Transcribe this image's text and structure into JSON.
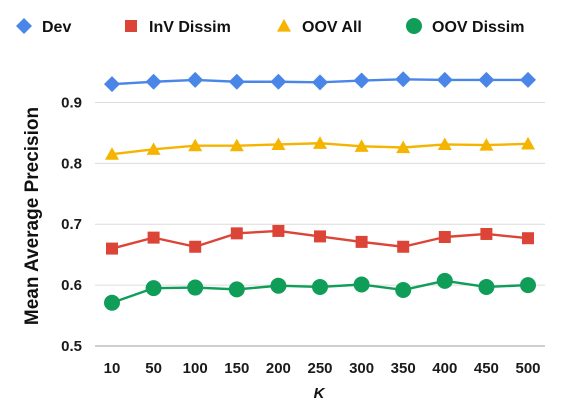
{
  "chart_data": {
    "type": "line",
    "x": [
      "10",
      "50",
      "100",
      "150",
      "200",
      "250",
      "300",
      "350",
      "400",
      "450",
      "500"
    ],
    "xlabel": "K",
    "ylabel": "Mean Average Precision",
    "ylim": [
      0.5,
      0.95
    ],
    "yticks": [
      "0.5",
      "0.6",
      "0.7",
      "0.8",
      "0.9"
    ],
    "grid": "horizontal",
    "legend": "top",
    "series": [
      {
        "name": "Dev",
        "color": "#4a86e8",
        "marker": "diamond",
        "values": [
          0.93,
          0.934,
          0.937,
          0.934,
          0.934,
          0.933,
          0.936,
          0.938,
          0.937,
          0.937,
          0.937
        ]
      },
      {
        "name": "InV Dissim",
        "color": "#db4437",
        "marker": "square",
        "values": [
          0.66,
          0.678,
          0.663,
          0.685,
          0.689,
          0.68,
          0.671,
          0.663,
          0.679,
          0.684,
          0.677
        ]
      },
      {
        "name": "OOV All",
        "color": "#f4b400",
        "marker": "triangle",
        "values": [
          0.815,
          0.823,
          0.829,
          0.829,
          0.831,
          0.833,
          0.828,
          0.826,
          0.831,
          0.83,
          0.832
        ]
      },
      {
        "name": "OOV Dissim",
        "color": "#0f9d58",
        "marker": "circle",
        "values": [
          0.571,
          0.595,
          0.596,
          0.593,
          0.599,
          0.597,
          0.601,
          0.592,
          0.607,
          0.597,
          0.6
        ]
      }
    ]
  }
}
